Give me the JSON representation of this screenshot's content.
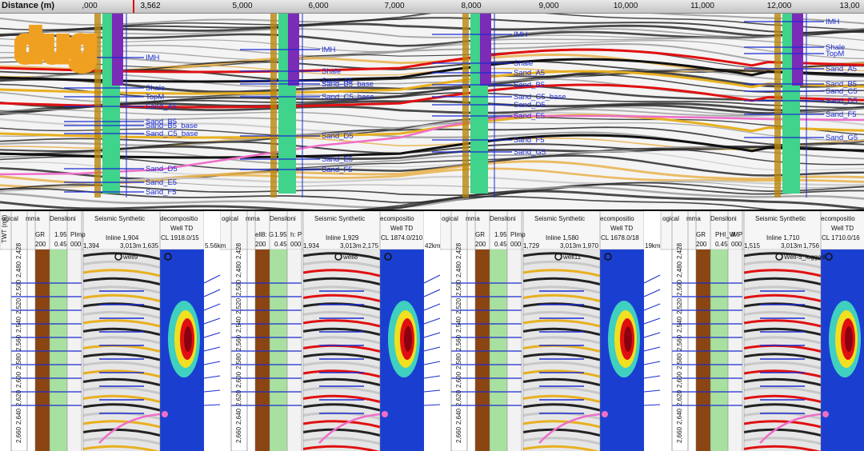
{
  "section": {
    "axis_title": "Distance (m)",
    "cursor_value": "3,562",
    "ticks": [
      "5,000",
      "6,000",
      "7,000",
      "8,000",
      "9,000",
      "10,000",
      "11,000",
      "12,000"
    ],
    "ticks_edge": {
      "left": ",000",
      "right": "13,00"
    },
    "logo": "dug",
    "wells": [
      {
        "labels": [
          "IMH",
          "Shale",
          "TopM",
          "Sand_A5",
          "Sand_B5",
          "Sand_B5_base",
          "Sand_C5_base",
          "Sand_D5",
          "Sand_E5",
          "Sand_F5"
        ]
      },
      {
        "labels": [
          "IMH",
          "Shale",
          "Sand_A5",
          "Sand_B5_base",
          "Sand_C5_base",
          "Sand_D5",
          "Sand_E5",
          "Sand_F5"
        ]
      },
      {
        "labels": [
          "IMH",
          "Shale",
          "Sand_A5",
          "Sand_B5",
          "Sand_C5_base",
          "Sand_D5",
          "Sand_E5",
          "Sand_F5",
          "Sand_G5"
        ]
      },
      {
        "labels": [
          "IMH",
          "Shale",
          "TopM",
          "Sand_A5",
          "Sand_B5",
          "Sand_C5",
          "Sand_D5",
          "Sand_F5",
          "Sand_G5"
        ]
      }
    ]
  },
  "wells_panel": [
    {
      "headers": [
        "ogical",
        "mma",
        "Densit",
        "oni",
        "Seismic Synthetic",
        "decompositio",
        "Well TD"
      ],
      "gr_label": "GR",
      "gr_min": "200",
      "dens_label": "1.95",
      "dens_min": "0.45",
      "imp": "PImp",
      "imp_min": "000",
      "inline": "Inline 1,904",
      "range_l": "1,394",
      "range_m": "3,013m",
      "range_r": "1,635",
      "well": "well9",
      "td": "CL 1918.0/15",
      "depths": [
        "2,428",
        "2,480",
        "2,500",
        "2,520",
        "2,540",
        "2,560",
        "2,580",
        "2,600",
        "2,620",
        "2,640",
        "2,660"
      ]
    },
    {
      "headers": [
        "ogical",
        "mma",
        "Densit",
        "oni",
        "Seismic Synthetic",
        "ecompositio",
        "Well TD"
      ],
      "gr_label": "ell8: G",
      "gr_min": "200",
      "dens_label": "1.95",
      "dens_min": "0.45",
      "imp": "h: P",
      "imp_min": "000",
      "inline": "Inline 1,929",
      "range_l": "1,934",
      "range_m": "3,013m",
      "range_r": "2,175",
      "well": "well8",
      "td": "CL 1874.0/210",
      "depths": [
        "2,428",
        "2,480",
        "2,500",
        "2,520",
        "2,540",
        "2,560",
        "2,580",
        "2,600",
        "2,620",
        "2,640",
        "2,660"
      ]
    },
    {
      "headers": [
        "ogical",
        "mma",
        "Densit",
        "oni",
        "Seismic Synthetic",
        "ecompositio",
        "Well TD"
      ],
      "gr_label": "GR",
      "gr_min": "200",
      "dens_label": "1.95",
      "dens_min": "0.45",
      "imp": "PImp",
      "imp_min": "000",
      "inline": "Inline 1,580",
      "range_l": "1,729",
      "range_m": "3,013m",
      "range_r": "1,970",
      "well": "well11",
      "td": "CL 1678.0/18",
      "depths": [
        "2,428",
        "2,480",
        "2,500",
        "2,520",
        "2,540",
        "2,560",
        "2,580",
        "2,600",
        "2,620",
        "2,640",
        "2,660"
      ]
    },
    {
      "headers": [
        "ogical",
        "mma",
        "Densit",
        "oni",
        "Seismic Synthetic",
        "ecompositio",
        "Well TD"
      ],
      "gr_label": "GR",
      "gr_min": "200",
      "dens_label": "PHI_W",
      "dens_min": "0.45",
      "imp": "IMP",
      "imp_min": "000",
      "inline": "Inline 1,710",
      "range_l": "1,515",
      "range_m": "3,013m",
      "range_r": "1,756",
      "well": "Well-5_logged",
      "well_b": "Well-5",
      "td": "CL 1710.0/16",
      "depths": [
        "2,428",
        "2,480",
        "2,500",
        "2,520",
        "2,540",
        "2,560",
        "2,580",
        "2,600",
        "2,620",
        "2,640",
        "2,660"
      ]
    }
  ],
  "between": [
    {
      "label": "5.56km"
    },
    {
      "label": "42km"
    },
    {
      "label": "19km"
    }
  ],
  "twt_label": "TWT (ms)",
  "colors": {
    "horizon_blue": "#1a2bd0",
    "pink": "#ef6ec8",
    "logo": "#f0a020",
    "green_col": "#3fd38c",
    "purple": "#7a2bb8"
  }
}
